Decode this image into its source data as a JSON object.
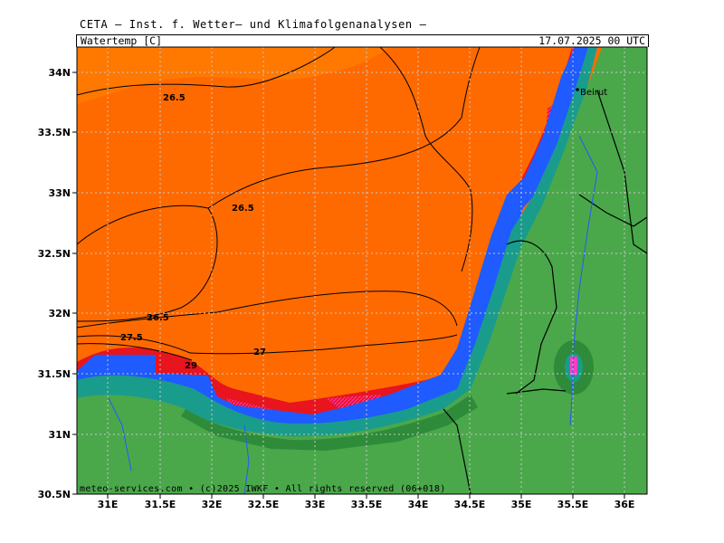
{
  "header": {
    "title": "CETA — Inst. f. Wetter— und Klimafolgenanalysen —",
    "parameter": "Watertemp [C]",
    "valid_time": "17.07.2025 00 UTC"
  },
  "map": {
    "lon_ticks": [
      "31E",
      "31.5E",
      "32E",
      "32.5E",
      "33E",
      "33.5E",
      "34E",
      "34.5E",
      "35E",
      "35.5E",
      "36E"
    ],
    "lat_ticks": [
      "34N",
      "33.5N",
      "33N",
      "32.5N",
      "32N",
      "31.5N",
      "31N",
      "30.5N"
    ],
    "contour_labels": [
      "26.5",
      "26.5",
      "26.5",
      "27.5",
      "27",
      "29"
    ],
    "city_label": "Beirut",
    "colors": {
      "sea": "#ff6a00",
      "sea_north": "#ff7800",
      "land": "#4aa84a",
      "land_dark": "#2e8b3a",
      "coast_blue": "#1f5bff",
      "coast_teal": "#1a9c8c",
      "warm_red": "#e8141e",
      "magenta": "#ff3cc8"
    }
  },
  "footer": {
    "credits": "meteo-services.com • (c)2025 IWKF • All rights reserved (06+018)"
  }
}
